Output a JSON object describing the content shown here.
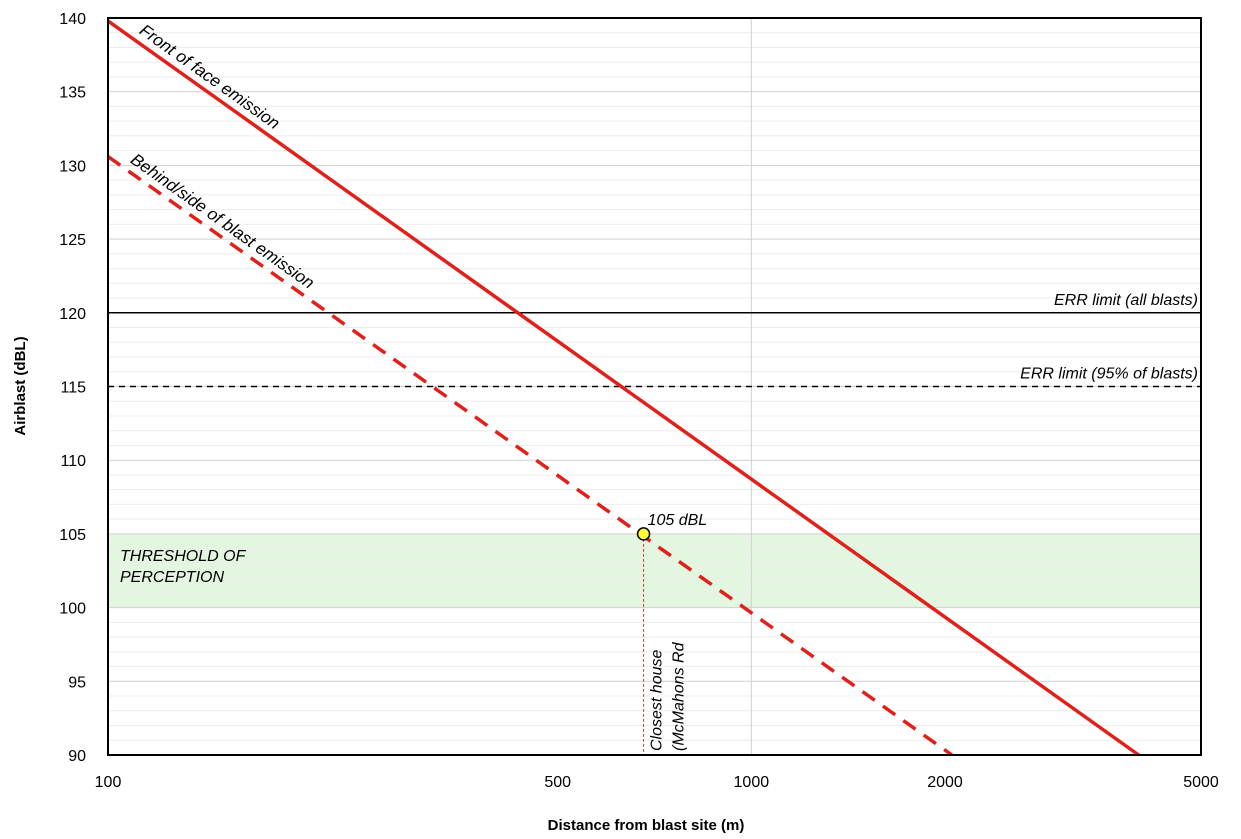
{
  "chart_data": {
    "type": "line",
    "x_scale": "log",
    "xlabel": "Distance from blast site (m)",
    "ylabel": "Airblast (dBL)",
    "xlim": [
      100,
      5000
    ],
    "ylim": [
      90,
      140
    ],
    "x_tick_labels": [
      "100",
      "500",
      "1000",
      "2000",
      "5000"
    ],
    "x_ticks": [
      100,
      500,
      1000,
      2000,
      5000
    ],
    "y_ticks": [
      90,
      95,
      100,
      105,
      110,
      115,
      120,
      125,
      130,
      135,
      140
    ],
    "grid": true,
    "series": [
      {
        "name": "Front of face emission",
        "style": "solid",
        "color": "#e0201b",
        "x": [
          100,
          4000
        ],
        "y": [
          139.8,
          90
        ]
      },
      {
        "name": "Behind/side of blast emission",
        "style": "dashed",
        "color": "#e0201b",
        "x": [
          100,
          2050
        ],
        "y": [
          130.6,
          90
        ]
      }
    ],
    "reference_lines": [
      {
        "label": "ERR limit (all blasts)",
        "y": 120,
        "style": "solid",
        "color": "#000000"
      },
      {
        "label": "ERR limit (95% of blasts)",
        "y": 115,
        "style": "dashed",
        "color": "#000000"
      }
    ],
    "shaded_band": {
      "label_lines": [
        "THRESHOLD OF",
        "PERCEPTION"
      ],
      "y_range": [
        100,
        105
      ],
      "color": "#e3f6df"
    },
    "marker": {
      "label": "105 dBL",
      "x": 680,
      "y": 105,
      "color": "#ffff33",
      "vertical_line_color": "#b84a2a",
      "caption_lines": [
        "Closest house",
        "(McMahons Rd"
      ]
    }
  }
}
